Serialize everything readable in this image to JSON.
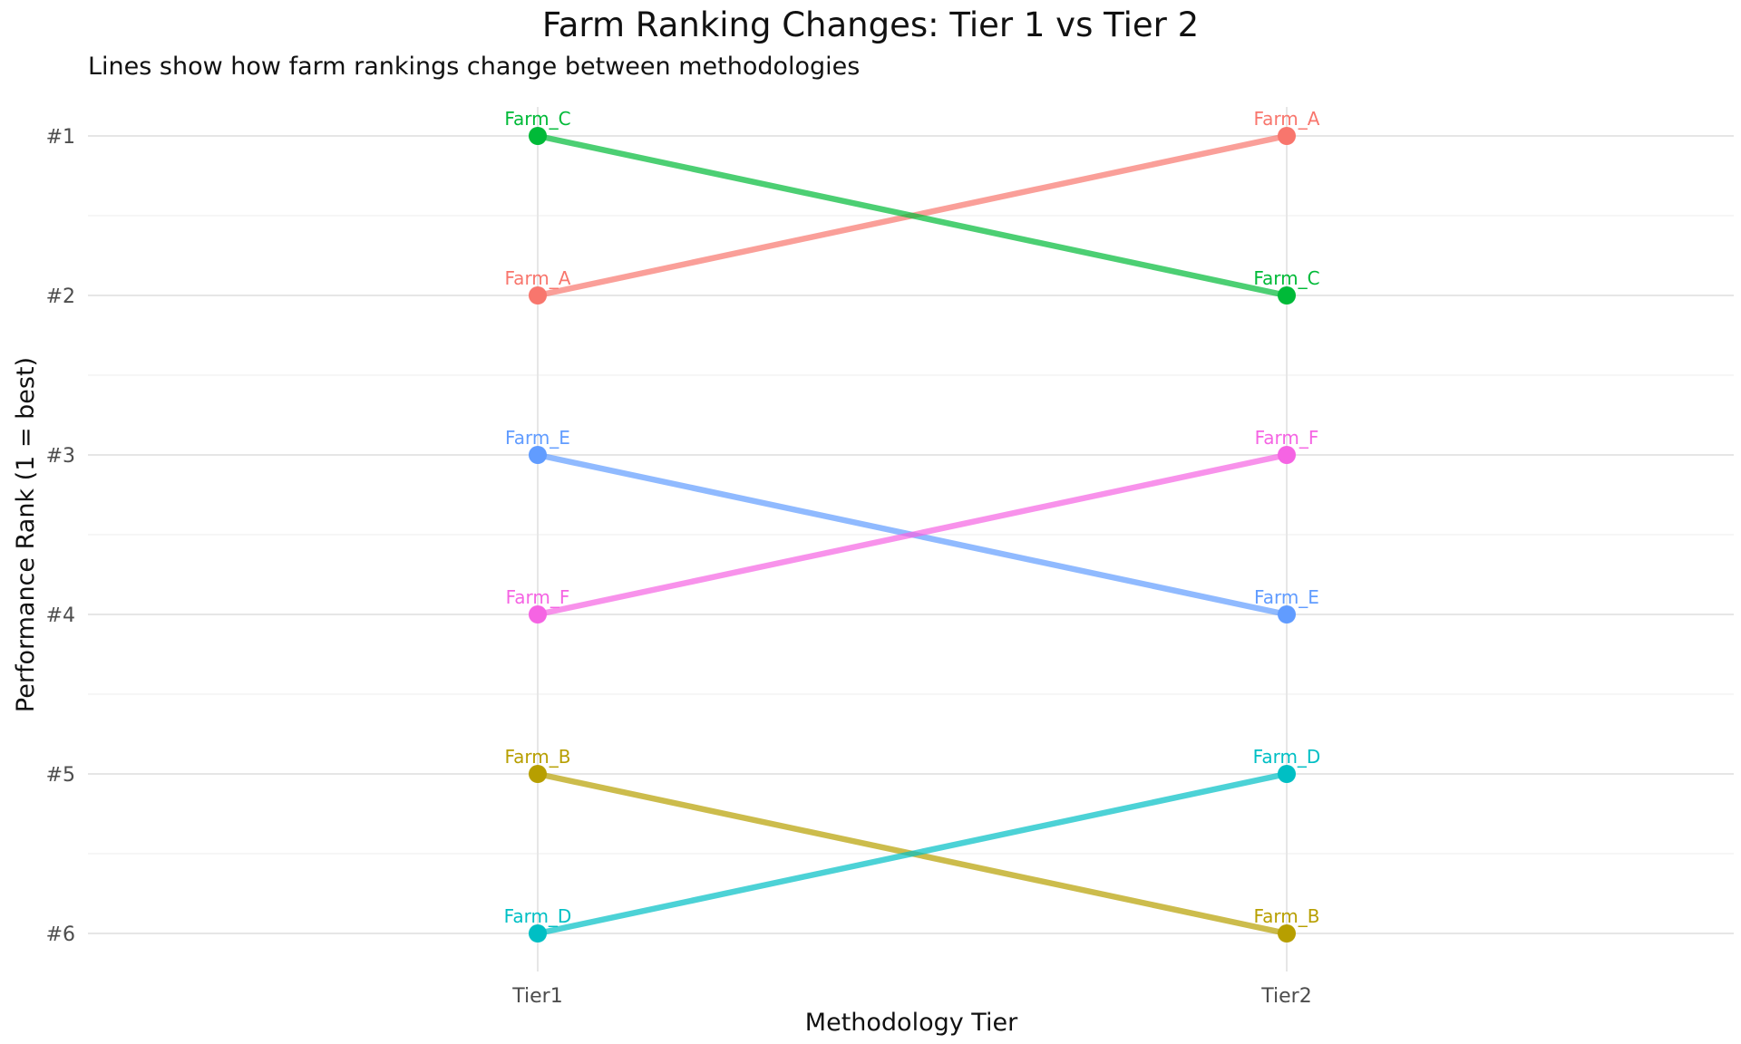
{
  "chart_data": {
    "type": "line",
    "title": "Farm Ranking Changes: Tier 1 vs Tier 2",
    "subtitle": "Lines show how farm rankings change between methodologies",
    "xlabel": "Methodology Tier",
    "ylabel": "Performance Rank (1 = best)",
    "categories": [
      "Tier1",
      "Tier2"
    ],
    "y_ticks": [
      {
        "value": 1,
        "label": "#1"
      },
      {
        "value": 2,
        "label": "#2"
      },
      {
        "value": 3,
        "label": "#3"
      },
      {
        "value": 4,
        "label": "#4"
      },
      {
        "value": 5,
        "label": "#5"
      },
      {
        "value": 6,
        "label": "#6"
      }
    ],
    "ylim": [
      6.2,
      0.8
    ],
    "y_reversed": true,
    "grid": true,
    "legend": "none",
    "series": [
      {
        "name": "Farm_A",
        "values": [
          2,
          1
        ],
        "color": "#F8766D"
      },
      {
        "name": "Farm_B",
        "values": [
          5,
          6
        ],
        "color": "#B79F00"
      },
      {
        "name": "Farm_C",
        "values": [
          1,
          2
        ],
        "color": "#00BA38"
      },
      {
        "name": "Farm_D",
        "values": [
          6,
          5
        ],
        "color": "#00BFC4"
      },
      {
        "name": "Farm_E",
        "values": [
          3,
          4
        ],
        "color": "#619CFF"
      },
      {
        "name": "Farm_F",
        "values": [
          4,
          3
        ],
        "color": "#F564E3"
      }
    ]
  }
}
